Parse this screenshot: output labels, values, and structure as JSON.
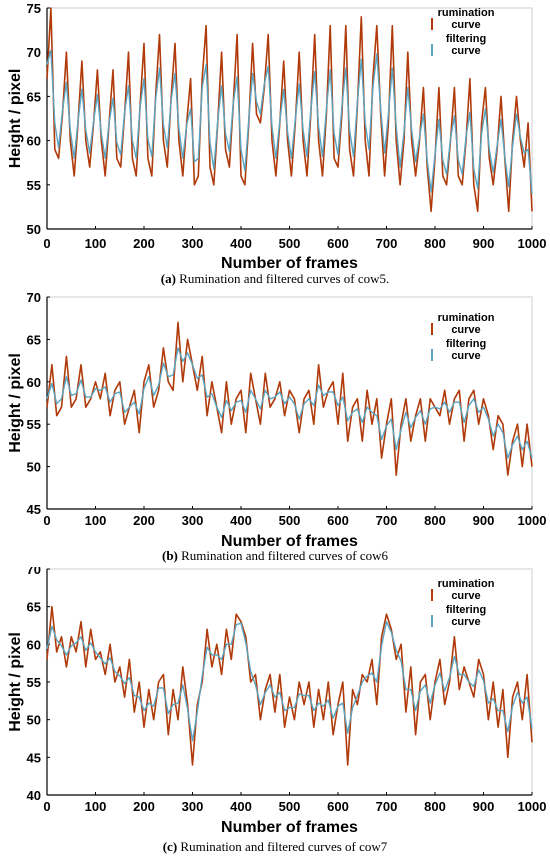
{
  "chart_data": [
    {
      "type": "line",
      "xlabel": "Number of frames",
      "ylabel": "Height / pixel",
      "xlim": [
        0,
        1000
      ],
      "ylim": [
        50,
        75
      ],
      "xticks": [
        0,
        100,
        200,
        300,
        400,
        500,
        600,
        700,
        800,
        900,
        1000
      ],
      "yticks": [
        50,
        55,
        60,
        65,
        70,
        75
      ],
      "legend_position": "top-right",
      "series": [
        {
          "name": "rumination curve",
          "color": "#b03a0a"
        },
        {
          "name": "filtering curve",
          "color": "#5aa5c2"
        }
      ],
      "x": [
        0,
        8,
        16,
        24,
        32,
        40,
        48,
        56,
        64,
        72,
        80,
        88,
        96,
        104,
        112,
        120,
        128,
        136,
        144,
        152,
        160,
        168,
        176,
        184,
        192,
        200,
        208,
        216,
        224,
        232,
        240,
        248,
        256,
        264,
        272,
        280,
        288,
        296,
        304,
        312,
        320,
        328,
        336,
        344,
        352,
        360,
        368,
        376,
        384,
        392,
        400,
        408,
        416,
        424,
        432,
        440,
        448,
        456,
        464,
        472,
        480,
        488,
        496,
        504,
        512,
        520,
        528,
        536,
        544,
        552,
        560,
        568,
        576,
        584,
        592,
        600,
        608,
        616,
        624,
        632,
        640,
        648,
        656,
        664,
        672,
        680,
        688,
        696,
        704,
        712,
        720,
        728,
        736,
        744,
        752,
        760,
        768,
        776,
        784,
        792,
        800,
        808,
        816,
        824,
        832,
        840,
        848,
        856,
        864,
        872,
        880,
        888,
        896,
        904,
        912,
        920,
        928,
        936,
        944,
        952,
        960,
        968,
        976,
        984,
        992,
        1000
      ],
      "values": [
        67,
        75,
        59,
        58,
        63,
        70,
        60,
        56,
        62,
        69,
        60,
        57,
        62,
        68,
        60,
        56,
        62,
        68,
        58,
        57,
        63,
        70,
        58,
        56,
        64,
        71,
        58,
        56,
        65,
        72,
        60,
        57,
        65,
        71,
        60,
        56,
        62,
        67,
        55,
        56,
        67,
        73,
        57,
        55,
        62,
        70,
        59,
        57,
        64,
        72,
        56,
        55,
        62,
        71,
        63,
        62,
        66,
        72,
        60,
        56,
        62,
        69,
        60,
        56,
        62,
        70,
        60,
        56,
        63,
        72,
        60,
        56,
        63,
        73,
        58,
        57,
        63,
        73,
        59,
        56,
        64,
        74,
        60,
        56,
        67,
        73,
        63,
        56,
        62,
        73,
        60,
        55,
        60,
        70,
        60,
        56,
        60,
        66,
        57,
        52,
        58,
        66,
        56,
        55,
        60,
        66,
        56,
        55,
        60,
        67,
        55,
        52,
        62,
        66,
        58,
        55,
        59,
        65,
        58,
        52,
        60,
        65,
        60,
        57,
        62,
        52
      ]
    },
    {
      "type": "line",
      "xlabel": "Number of frames",
      "ylabel": "Height / pixel",
      "xlim": [
        0,
        1000
      ],
      "ylim": [
        45,
        70
      ],
      "xticks": [
        0,
        100,
        200,
        300,
        400,
        500,
        600,
        700,
        800,
        900,
        1000
      ],
      "yticks": [
        45,
        50,
        55,
        60,
        65,
        70
      ],
      "legend_position": "top-right",
      "series": [
        {
          "name": "rumination curve",
          "color": "#b03a0a"
        },
        {
          "name": "filtering curve",
          "color": "#5aa5c2"
        }
      ],
      "x": [
        0,
        10,
        20,
        30,
        40,
        50,
        60,
        70,
        80,
        90,
        100,
        110,
        120,
        130,
        140,
        150,
        160,
        170,
        180,
        190,
        200,
        210,
        220,
        230,
        240,
        250,
        260,
        270,
        280,
        290,
        300,
        310,
        320,
        330,
        340,
        350,
        360,
        370,
        380,
        390,
        400,
        410,
        420,
        430,
        440,
        450,
        460,
        470,
        480,
        490,
        500,
        510,
        520,
        530,
        540,
        550,
        560,
        570,
        580,
        590,
        600,
        610,
        620,
        630,
        640,
        650,
        660,
        670,
        680,
        690,
        700,
        710,
        720,
        730,
        740,
        750,
        760,
        770,
        780,
        790,
        800,
        810,
        820,
        830,
        840,
        850,
        860,
        870,
        880,
        890,
        900,
        910,
        920,
        930,
        940,
        950,
        960,
        970,
        980,
        990,
        1000
      ],
      "values": [
        57,
        62,
        56,
        57,
        63,
        57,
        58,
        62,
        57,
        58,
        60,
        58,
        61,
        56,
        59,
        60,
        55,
        57,
        59,
        54,
        60,
        62,
        57,
        59,
        64,
        60,
        59,
        67,
        60,
        65,
        62,
        59,
        63,
        56,
        60,
        57,
        54,
        60,
        55,
        58,
        59,
        54,
        61,
        58,
        55,
        61,
        57,
        58,
        60,
        56,
        59,
        58,
        54,
        58,
        59,
        55,
        62,
        57,
        59,
        60,
        55,
        61,
        53,
        57,
        58,
        53,
        59,
        55,
        58,
        51,
        55,
        58,
        49,
        55,
        58,
        53,
        56,
        58,
        53,
        58,
        57,
        56,
        59,
        55,
        58,
        59,
        53,
        58,
        59,
        55,
        58,
        56,
        52,
        56,
        55,
        49,
        53,
        55,
        50,
        55,
        50
      ]
    },
    {
      "type": "line",
      "xlabel": "Number of frames",
      "ylabel": "Height / pixel",
      "xlim": [
        0,
        1000
      ],
      "ylim": [
        40,
        70
      ],
      "xticks": [
        0,
        100,
        200,
        300,
        400,
        500,
        600,
        700,
        800,
        900,
        1000
      ],
      "yticks": [
        40,
        45,
        50,
        55,
        60,
        65,
        70
      ],
      "legend_position": "top-right",
      "series": [
        {
          "name": "rumination curve",
          "color": "#b03a0a"
        },
        {
          "name": "filtering curve",
          "color": "#5aa5c2"
        }
      ],
      "x": [
        0,
        10,
        20,
        30,
        40,
        50,
        60,
        70,
        80,
        90,
        100,
        110,
        120,
        130,
        140,
        150,
        160,
        170,
        180,
        190,
        200,
        210,
        220,
        230,
        240,
        250,
        260,
        270,
        280,
        290,
        300,
        310,
        320,
        330,
        340,
        350,
        360,
        370,
        380,
        390,
        400,
        410,
        420,
        430,
        440,
        450,
        460,
        470,
        480,
        490,
        500,
        510,
        520,
        530,
        540,
        550,
        560,
        570,
        580,
        590,
        600,
        610,
        620,
        630,
        640,
        650,
        660,
        670,
        680,
        690,
        700,
        710,
        720,
        730,
        740,
        750,
        760,
        770,
        780,
        790,
        800,
        810,
        820,
        830,
        840,
        850,
        860,
        870,
        880,
        890,
        900,
        910,
        920,
        930,
        940,
        950,
        960,
        970,
        980,
        990,
        1000
      ],
      "values": [
        58,
        65,
        59,
        61,
        57,
        61,
        59,
        63,
        57,
        62,
        58,
        59,
        56,
        60,
        55,
        57,
        53,
        58,
        51,
        55,
        49,
        54,
        50,
        55,
        56,
        48,
        54,
        50,
        57,
        52,
        44,
        52,
        55,
        62,
        57,
        60,
        56,
        62,
        58,
        64,
        63,
        61,
        55,
        56,
        50,
        54,
        56,
        51,
        56,
        49,
        53,
        50,
        55,
        52,
        55,
        49,
        54,
        50,
        55,
        48,
        52,
        55,
        44,
        54,
        52,
        56,
        55,
        58,
        52,
        61,
        64,
        62,
        58,
        60,
        51,
        57,
        48,
        55,
        56,
        50,
        55,
        58,
        52,
        55,
        61,
        54,
        57,
        55,
        53,
        58,
        56,
        50,
        55,
        49,
        54,
        45,
        53,
        55,
        50,
        56,
        47
      ]
    }
  ],
  "captions": [
    {
      "label": "(a)",
      "text": " Rumination and filtered curves of cow5."
    },
    {
      "label": "(b)",
      "text": " Rumination and filtered curves of cow6"
    },
    {
      "label": "(c)",
      "text": " Rumination and filtered curves of cow7"
    }
  ]
}
